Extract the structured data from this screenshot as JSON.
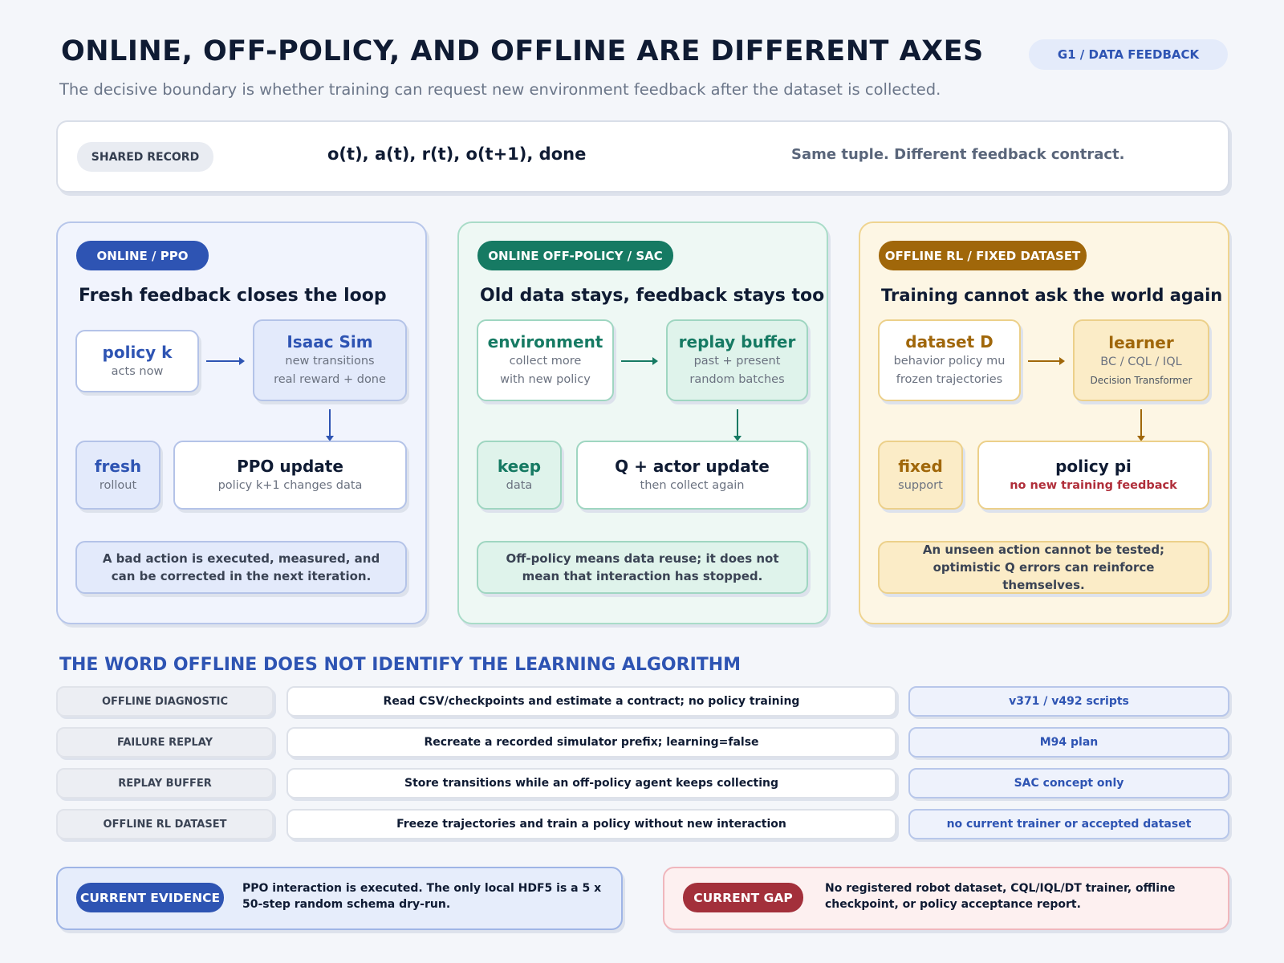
{
  "header": {
    "title": "ONLINE, OFF-POLICY, AND OFFLINE ARE DIFFERENT AXES",
    "subtitle": "The decisive boundary is whether training can request new environment feedback after the dataset is collected.",
    "tag": "G1 / DATA FEEDBACK"
  },
  "shared_record": {
    "tag": "SHARED RECORD",
    "tuple": "o(t), a(t), r(t), o(t+1), done",
    "note": "Same tuple. Different feedback contract."
  },
  "panels": [
    {
      "tag": "ONLINE / PPO",
      "heading": "Fresh feedback closes the loop",
      "source": {
        "title": "policy k",
        "sub1": "acts now"
      },
      "target": {
        "title": "Isaac Sim",
        "sub1": "new transitions",
        "sub2": "real reward + done"
      },
      "side": {
        "title": "fresh",
        "sub1": "rollout"
      },
      "update": {
        "title": "PPO update",
        "sub1": "policy k+1 changes data"
      },
      "note": "A bad action is executed, measured, and can be corrected in the next iteration."
    },
    {
      "tag": "ONLINE OFF-POLICY / SAC",
      "heading": "Old data stays, feedback stays too",
      "source": {
        "title": "environment",
        "sub1": "collect more",
        "sub2": "with new policy"
      },
      "target": {
        "title": "replay buffer",
        "sub1": "past + present",
        "sub2": "random batches"
      },
      "side": {
        "title": "keep",
        "sub1": "data"
      },
      "update": {
        "title": "Q + actor update",
        "sub1": "then collect again"
      },
      "note": "Off-policy means data reuse; it does not mean that interaction has stopped."
    },
    {
      "tag": "OFFLINE RL / FIXED DATASET",
      "heading": "Training cannot ask the world again",
      "source": {
        "title": "dataset D",
        "sub1": "behavior policy mu",
        "sub2": "frozen trajectories"
      },
      "target": {
        "title": "learner",
        "sub1": "BC / CQL / IQL",
        "sub2": "Decision Transformer"
      },
      "side": {
        "title": "fixed",
        "sub1": "support"
      },
      "update": {
        "title": "policy pi",
        "sub1": "no new training feedback"
      },
      "note": "An unseen action cannot be tested; optimistic Q errors can reinforce themselves."
    }
  ],
  "section": {
    "title": "THE WORD OFFLINE DOES NOT IDENTIFY THE LEARNING ALGORITHM",
    "rows": [
      {
        "label": "OFFLINE DIAGNOSTIC",
        "desc": "Read CSV/checkpoints and estimate a contract; no policy training",
        "tag": "v371 / v492 scripts"
      },
      {
        "label": "FAILURE REPLAY",
        "desc": "Recreate a recorded simulator prefix; learning=false",
        "tag": "M94 plan"
      },
      {
        "label": "REPLAY BUFFER",
        "desc": "Store transitions while an off-policy agent keeps collecting",
        "tag": "SAC concept only"
      },
      {
        "label": "OFFLINE RL DATASET",
        "desc": "Freeze trajectories and train a policy without new interaction",
        "tag": "no current trainer or accepted dataset"
      }
    ]
  },
  "evidence": {
    "tag": "CURRENT EVIDENCE",
    "text": "PPO interaction is executed. The only local HDF5 is a 5 x 50-step random schema dry-run."
  },
  "gap": {
    "tag": "CURRENT GAP",
    "text": "No registered robot dataset, CQL/IQL/DT trainer, offline checkpoint, or policy acceptance report."
  },
  "colors": {
    "online": "#2e54b3",
    "offpolicy": "#167a63",
    "offline": "#a0670a",
    "gap": "#a3303b"
  }
}
